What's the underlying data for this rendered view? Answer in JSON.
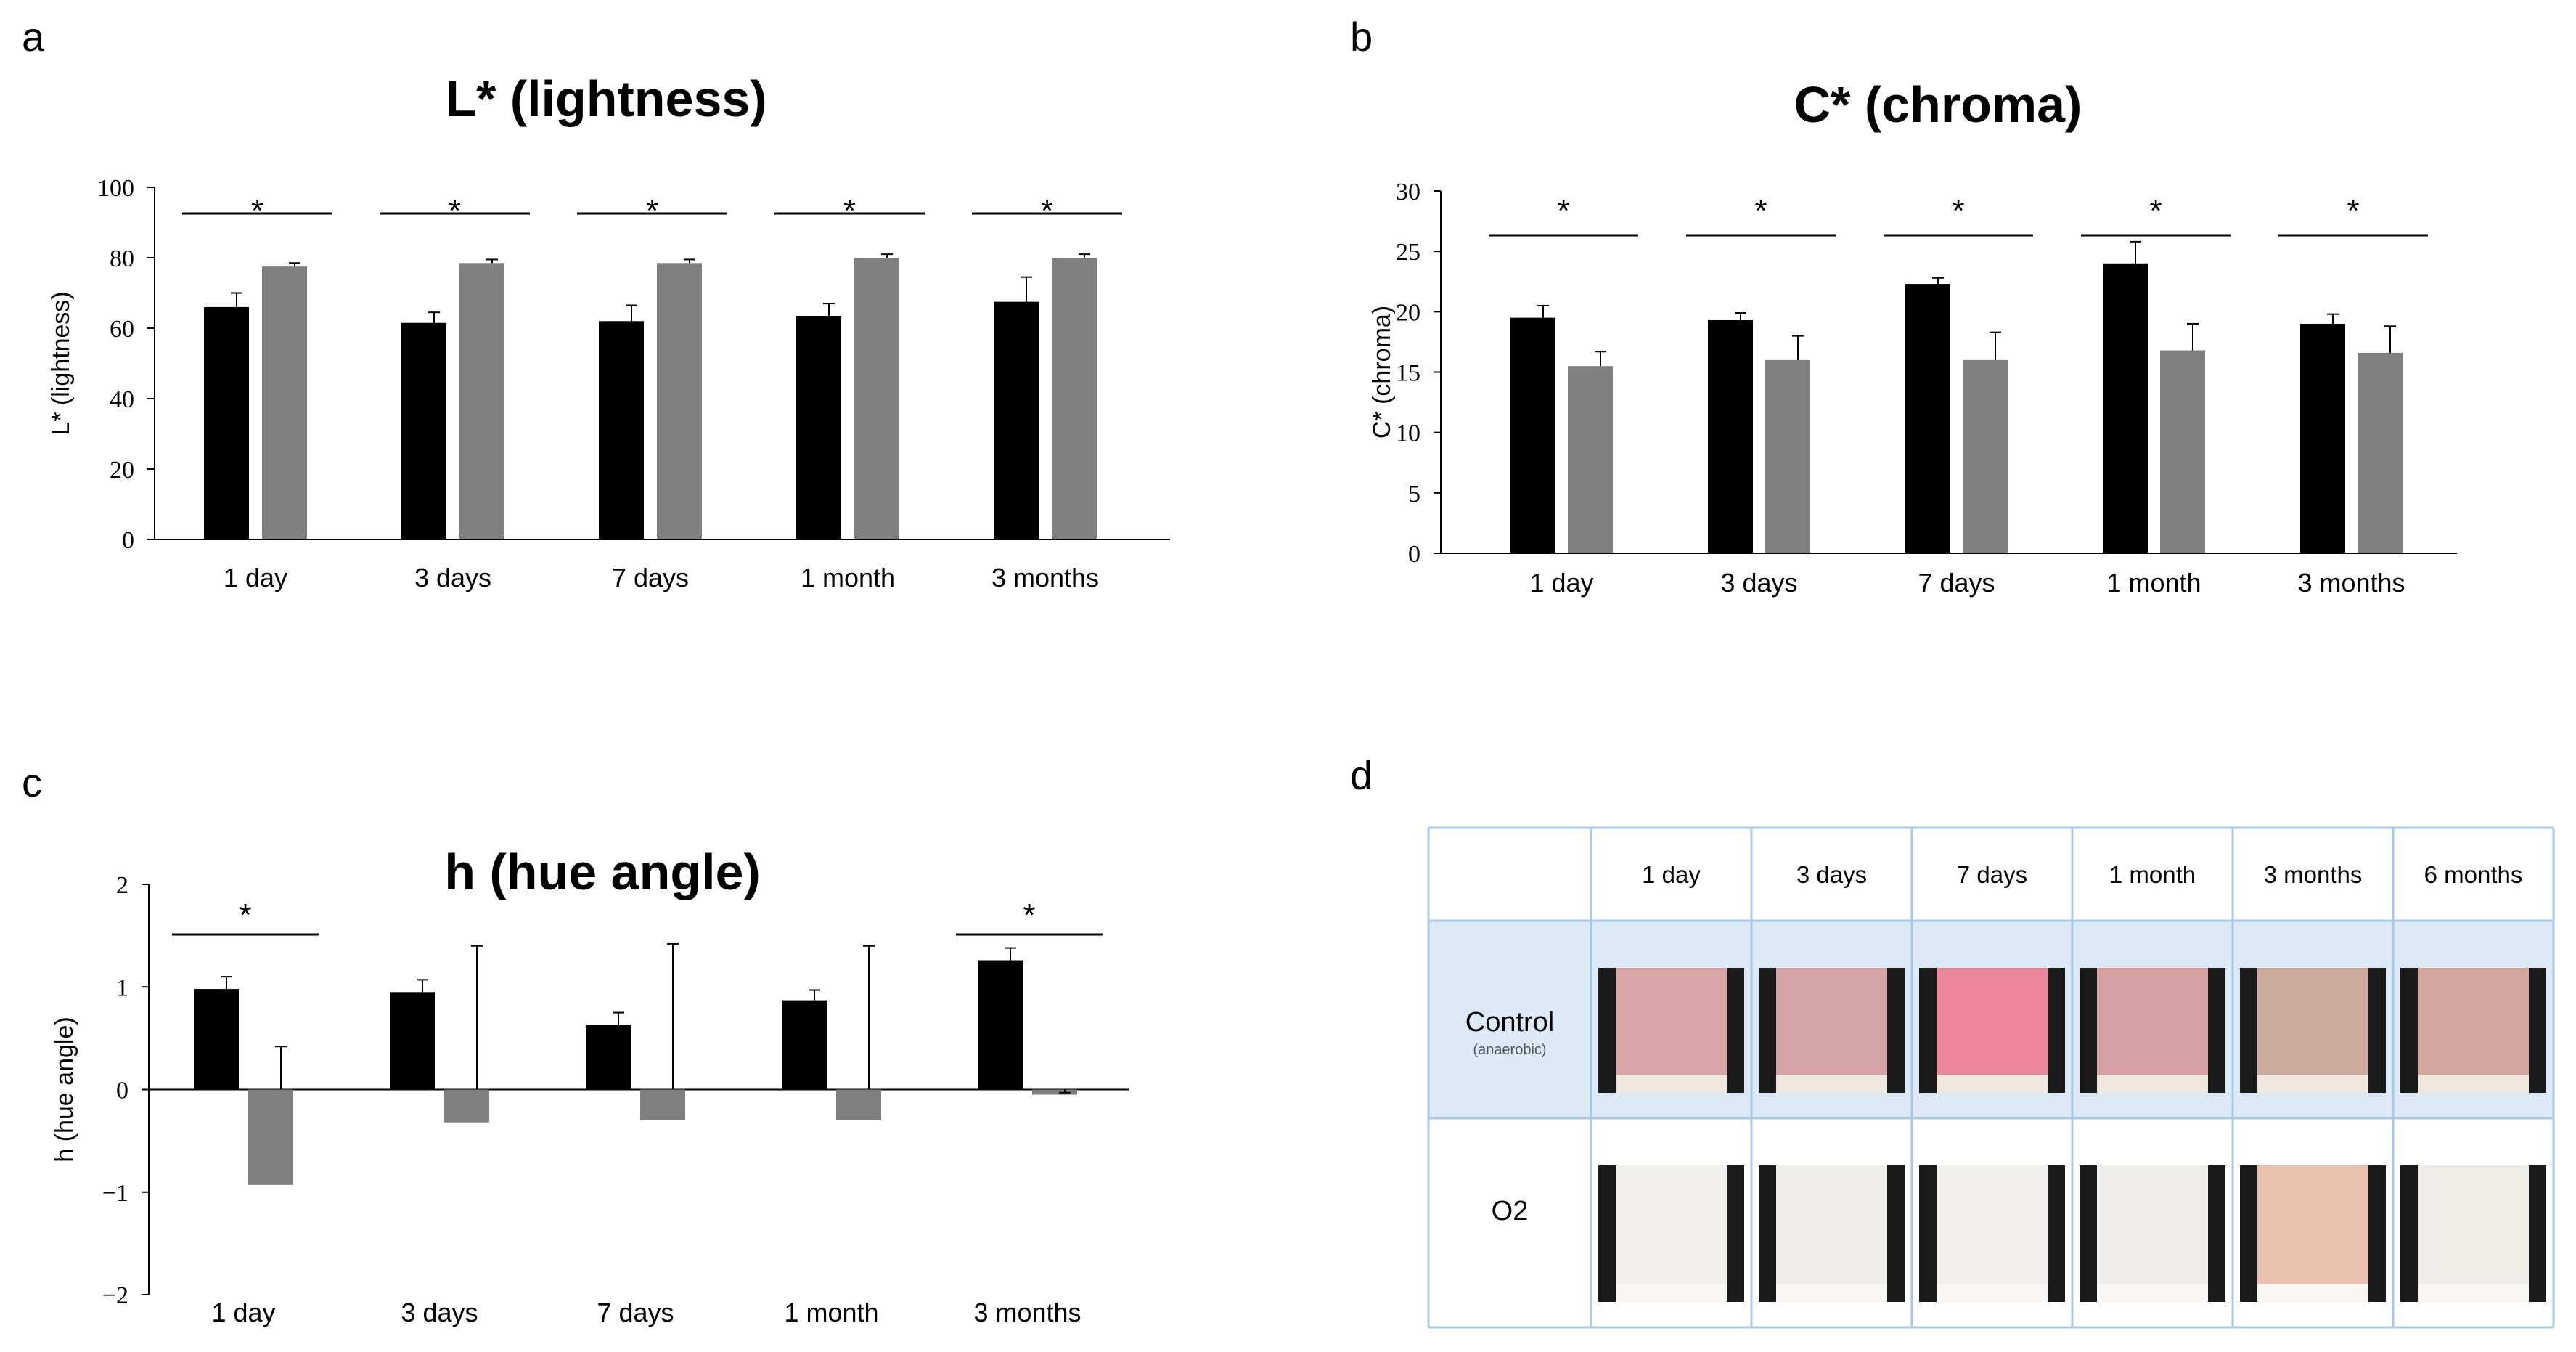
{
  "panels": {
    "a": "a",
    "b": "b",
    "c": "c",
    "d": "d"
  },
  "colors": {
    "black_bar": "#000000",
    "gray_bar": "#808080",
    "table_grid": "#a9c8e6",
    "table_band": "#dce9f7"
  },
  "chart_data": [
    {
      "id": "a",
      "type": "bar",
      "title": "L* (lightness)",
      "ylabel": "L* (lightness)",
      "xlabel": "",
      "categories": [
        "1 day",
        "3 days",
        "7 days",
        "1 month",
        "3 months"
      ],
      "yticks": [
        "0",
        "20",
        "40",
        "60",
        "80",
        "100"
      ],
      "ylim": [
        0,
        100
      ],
      "series": [
        {
          "name": "Control (anaerobic)",
          "values": [
            66,
            61.5,
            62,
            63.5,
            67.5
          ],
          "errors": [
            4,
            3,
            4.5,
            3.5,
            7
          ]
        },
        {
          "name": "O2",
          "values": [
            77.5,
            78.5,
            78.5,
            80,
            80
          ],
          "errors": [
            1,
            1,
            1,
            1,
            1
          ]
        }
      ],
      "significance": [
        "*",
        "*",
        "*",
        "*",
        "*"
      ]
    },
    {
      "id": "b",
      "type": "bar",
      "title": "C* (chroma)",
      "ylabel": "C* (chroma)",
      "xlabel": "",
      "categories": [
        "1 day",
        "3 days",
        "7 days",
        "1 month",
        "3 months"
      ],
      "yticks": [
        "0",
        "5",
        "10",
        "15",
        "20",
        "25",
        "30"
      ],
      "ylim": [
        0,
        30
      ],
      "series": [
        {
          "name": "Control (anaerobic)",
          "values": [
            19.5,
            19.3,
            22.3,
            24,
            19
          ],
          "errors": [
            1,
            0.6,
            0.5,
            1.8,
            0.8
          ]
        },
        {
          "name": "O2",
          "values": [
            15.5,
            16,
            16,
            16.8,
            16.6
          ],
          "errors": [
            1.2,
            2,
            2.3,
            2.2,
            2.2
          ]
        }
      ],
      "significance": [
        "*",
        "*",
        "*",
        "*",
        "*"
      ]
    },
    {
      "id": "c",
      "type": "bar",
      "title": "h (hue angle)",
      "ylabel": "h (hue angle)",
      "xlabel": "",
      "categories": [
        "1 day",
        "3 days",
        "7 days",
        "1 month",
        "3 months"
      ],
      "yticks": [
        "−2",
        "−1",
        "0",
        "1",
        "2"
      ],
      "ylim": [
        -2,
        2
      ],
      "series": [
        {
          "name": "Control (anaerobic)",
          "values": [
            0.98,
            0.95,
            0.63,
            0.87,
            1.26
          ],
          "errors": [
            0.12,
            0.12,
            0.12,
            0.1,
            0.12
          ]
        },
        {
          "name": "O2",
          "values": [
            -0.93,
            -0.32,
            -0.3,
            -0.3,
            -0.05
          ],
          "errors": [
            1.35,
            1.72,
            1.72,
            1.7,
            0.02
          ]
        }
      ],
      "significance": [
        "*",
        "",
        "",
        "",
        "*"
      ]
    }
  ],
  "photo_table": {
    "columns": [
      "1 day",
      "3 days",
      "7 days",
      "1 month",
      "3 months",
      "6 months"
    ],
    "rows": [
      {
        "label": "Control",
        "sublabel": "(anaerobic)"
      },
      {
        "label": "O2"
      }
    ]
  }
}
